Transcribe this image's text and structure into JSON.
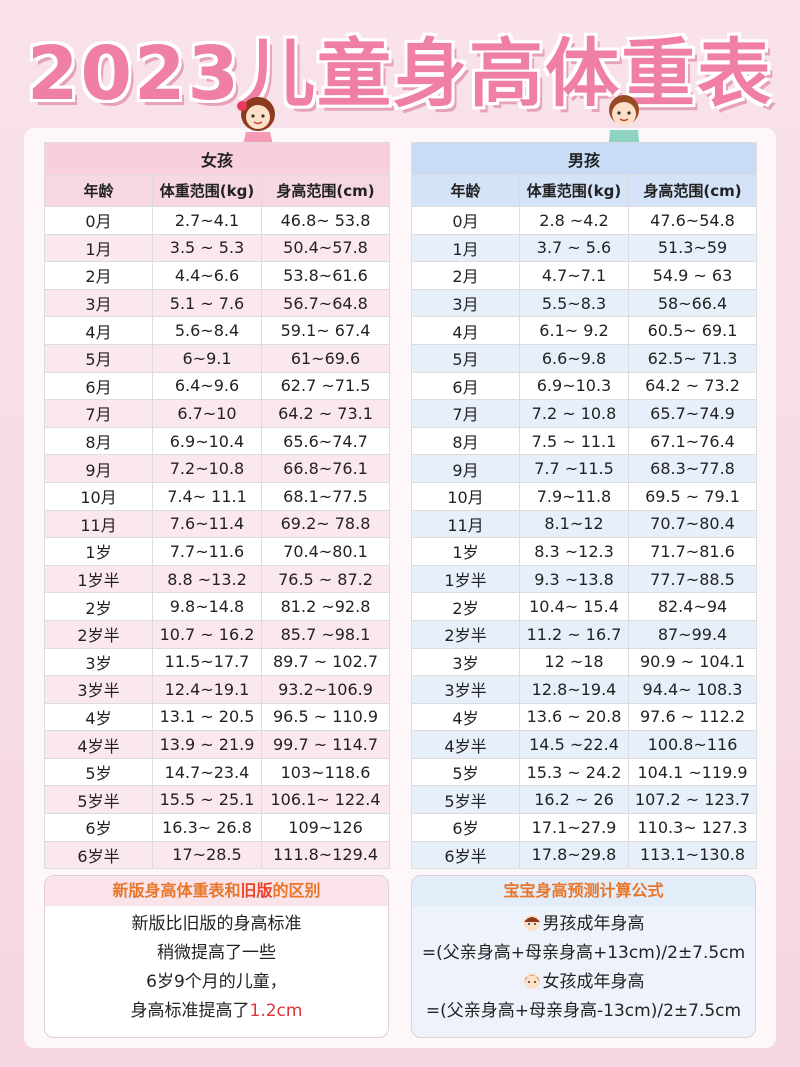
{
  "title": "2023儿童身高体重表",
  "girls": {
    "heading": "女孩",
    "col_age": "年龄",
    "col_weight": "体重范围(kg)",
    "col_height": "身高范围(cm)",
    "rows": [
      [
        "0月",
        "2.7~4.1",
        "46.8~ 53.8"
      ],
      [
        "1月",
        "3.5 ~ 5.3",
        "50.4~57.8"
      ],
      [
        "2月",
        "4.4~6.6",
        "53.8~61.6"
      ],
      [
        "3月",
        "5.1 ~ 7.6",
        "56.7~64.8"
      ],
      [
        "4月",
        "5.6~8.4",
        "59.1~ 67.4"
      ],
      [
        "5月",
        "6~9.1",
        "61~69.6"
      ],
      [
        "6月",
        "6.4~9.6",
        "62.7 ~71.5"
      ],
      [
        "7月",
        "6.7~10",
        "64.2 ~ 73.1"
      ],
      [
        "8月",
        "6.9~10.4",
        "65.6~74.7"
      ],
      [
        "9月",
        "7.2~10.8",
        "66.8~76.1"
      ],
      [
        "10月",
        "7.4~ 11.1",
        "68.1~77.5"
      ],
      [
        "11月",
        "7.6~11.4",
        "69.2~ 78.8"
      ],
      [
        "1岁",
        "7.7~11.6",
        "70.4~80.1"
      ],
      [
        "1岁半",
        "8.8 ~13.2",
        "76.5 ~ 87.2"
      ],
      [
        "2岁",
        "9.8~14.8",
        "81.2 ~92.8"
      ],
      [
        "2岁半",
        "10.7 ~ 16.2",
        "85.7 ~98.1"
      ],
      [
        "3岁",
        "11.5~17.7",
        "89.7 ~ 102.7"
      ],
      [
        "3岁半",
        "12.4~19.1",
        "93.2~106.9"
      ],
      [
        "4岁",
        "13.1 ~ 20.5",
        "96.5 ~ 110.9"
      ],
      [
        "4岁半",
        "13.9 ~ 21.9",
        "99.7 ~ 114.7"
      ],
      [
        "5岁",
        "14.7~23.4",
        "103~118.6"
      ],
      [
        "5岁半",
        "15.5 ~ 25.1",
        "106.1~ 122.4"
      ],
      [
        "6岁",
        "16.3~ 26.8",
        "109~126"
      ],
      [
        "6岁半",
        "17~28.5",
        "111.8~129.4"
      ]
    ]
  },
  "boys": {
    "heading": "男孩",
    "col_age": "年龄",
    "col_weight": "体重范围(kg)",
    "col_height": "身高范围(cm)",
    "rows": [
      [
        "0月",
        "2.8 ~4.2",
        "47.6~54.8"
      ],
      [
        "1月",
        "3.7 ~ 5.6",
        "51.3~59"
      ],
      [
        "2月",
        "4.7~7.1",
        "54.9 ~ 63"
      ],
      [
        "3月",
        "5.5~8.3",
        "58~66.4"
      ],
      [
        "4月",
        "6.1~ 9.2",
        "60.5~ 69.1"
      ],
      [
        "5月",
        "6.6~9.8",
        "62.5~ 71.3"
      ],
      [
        "6月",
        "6.9~10.3",
        "64.2 ~ 73.2"
      ],
      [
        "7月",
        "7.2 ~ 10.8",
        "65.7~74.9"
      ],
      [
        "8月",
        "7.5 ~ 11.1",
        "67.1~76.4"
      ],
      [
        "9月",
        "7.7 ~11.5",
        "68.3~77.8"
      ],
      [
        "10月",
        "7.9~11.8",
        "69.5 ~ 79.1"
      ],
      [
        "11月",
        "8.1~12",
        "70.7~80.4"
      ],
      [
        "1岁",
        "8.3 ~12.3",
        "71.7~81.6"
      ],
      [
        "1岁半",
        "9.3 ~13.8",
        "77.7~88.5"
      ],
      [
        "2岁",
        "10.4~ 15.4",
        "82.4~94"
      ],
      [
        "2岁半",
        "11.2 ~ 16.7",
        "87~99.4"
      ],
      [
        "3岁",
        "12 ~18",
        "90.9 ~ 104.1"
      ],
      [
        "3岁半",
        "12.8~19.4",
        "94.4~ 108.3"
      ],
      [
        "4岁",
        "13.6 ~ 20.8",
        "97.6 ~ 112.2"
      ],
      [
        "4岁半",
        "14.5 ~22.4",
        "100.8~116"
      ],
      [
        "5岁",
        "15.3 ~ 24.2",
        "104.1 ~119.9"
      ],
      [
        "5岁半",
        "16.2 ~ 26",
        "107.2 ~ 123.7"
      ],
      [
        "6岁",
        "17.1~27.9",
        "110.3~ 127.3"
      ],
      [
        "6岁半",
        "17.8~29.8",
        "113.1~130.8"
      ]
    ]
  },
  "note_left": {
    "heading_pre": "新版身高体重表和",
    "heading_hl": "旧版",
    "heading_post": "的区别",
    "line1": "新版比旧版的身高标准",
    "line2": "稍微提高了一些",
    "line3": "6岁9个月的儿童，",
    "line4_pre": "身高标准提高了",
    "line4_red": "1.2cm"
  },
  "note_right": {
    "heading": "宝宝身高预测计算公式",
    "boy_label": "男孩成年身高",
    "boy_formula": "=(父亲身高+母亲身高+13cm)/2±7.5cm",
    "girl_label": "女孩成年身高",
    "girl_formula": "=(父亲身高+母亲身高-13cm)/2±7.5cm"
  },
  "colors": {
    "title": "#ef7fa7",
    "girls_header": "#f8cfdc",
    "boys_header": "#c9dcf5",
    "highlight_red": "#e0343b",
    "highlight_orange": "#e8762a"
  }
}
